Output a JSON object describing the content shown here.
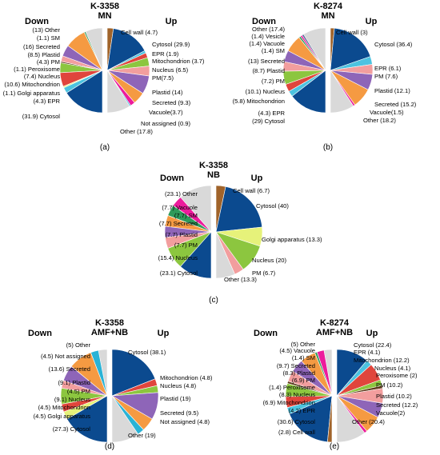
{
  "figure_labels": [
    "(a)",
    "(b)",
    "(c)",
    "(d)",
    "(e)"
  ],
  "colors": {
    "Cell wall": "#a0632a",
    "Cytosol": "#0b4a8f",
    "EPR": "#4cc3e0",
    "Mitochondrion": "#e0453c",
    "Nucleus": "#8cc63f",
    "PM": "#f29e9e",
    "Plastid": "#8e65b8",
    "Secreted": "#f59a42",
    "Vacuole": "#ec1c9c",
    "Not assigned": "#2ab3d6",
    "Other": "#d9d9d9",
    "SM": "#2f9a5a",
    "Peroxisome": "#5d3a1a",
    "Golgi apparatus": "#e6f27a",
    "Vesicle": "#5a6e9a"
  },
  "chart_data": [
    {
      "type": "pie",
      "panel": "(a)",
      "title": "K-3358",
      "subtitle": "MN",
      "down": {
        "label": "Down",
        "slices": [
          {
            "name": "Other",
            "value": 13,
            "text": "(13) Other"
          },
          {
            "name": "SM",
            "value": 1.1,
            "text": "(1.1) SM"
          },
          {
            "name": "Secreted",
            "value": 16,
            "text": "(16) Secreted"
          },
          {
            "name": "Plastid",
            "value": 8.5,
            "text": "(8.5) Plastid"
          },
          {
            "name": "PM",
            "value": 4.3,
            "text": "(4.3) PM"
          },
          {
            "name": "Peroxisome",
            "value": 1.1,
            "text": "(1.1) Peroxisome"
          },
          {
            "name": "Nucleus",
            "value": 7.4,
            "text": "(7.4) Nucleus"
          },
          {
            "name": "Mitochondrion",
            "value": 10.6,
            "text": "(10.6) Mitochondrion"
          },
          {
            "name": "Golgi apparatus",
            "value": 1.1,
            "text": "(1.1) Golgi apparatus"
          },
          {
            "name": "EPR",
            "value": 4.3,
            "text": "(4.3) EPR"
          },
          {
            "name": "Cytosol",
            "value": 31.9,
            "text": "(31.9) Cytosol"
          }
        ]
      },
      "up": {
        "label": "Up",
        "slices": [
          {
            "name": "Cell wall",
            "value": 4.7,
            "text": "Cell wall (4.7)"
          },
          {
            "name": "Cytosol",
            "value": 29.9,
            "text": "Cytosol (29.9)"
          },
          {
            "name": "EPR",
            "value": 1.9,
            "text": "EPR (1.9)"
          },
          {
            "name": "Mitochondrion",
            "value": 3.7,
            "text": "Mitochondrion (3.7)"
          },
          {
            "name": "Nucleus",
            "value": 6.5,
            "text": "Nucleus (6.5)"
          },
          {
            "name": "PM",
            "value": 7.5,
            "text": "PM(7.5)"
          },
          {
            "name": "Plastid",
            "value": 14,
            "text": "Plastid (14)"
          },
          {
            "name": "Secreted",
            "value": 9.3,
            "text": "Secreted (9.3)"
          },
          {
            "name": "Vacuole",
            "value": 3.7,
            "text": "Vacuole(3.7)"
          },
          {
            "name": "Not assigned",
            "value": 0.9,
            "text": "Not assigned (0.9)"
          },
          {
            "name": "Other",
            "value": 17.8,
            "text": "Other (17.8)"
          }
        ]
      }
    },
    {
      "type": "pie",
      "panel": "(b)",
      "title": "K-8274",
      "subtitle": "MN",
      "down": {
        "label": "Down",
        "slices": [
          {
            "name": "Other",
            "value": 17.4,
            "text": "Other (17.4)"
          },
          {
            "name": "Vesicle",
            "value": 1.4,
            "text": "(1.4) Vesicle"
          },
          {
            "name": "Vacuole",
            "value": 1.4,
            "text": "(1.4) Vacuole"
          },
          {
            "name": "SM",
            "value": 1.4,
            "text": "(1.4) SM"
          },
          {
            "name": "Secreted",
            "value": 13,
            "text": "(13) Secreted"
          },
          {
            "name": "Plastid",
            "value": 8.7,
            "text": "(8.7) Plastid"
          },
          {
            "name": "PM",
            "value": 7.2,
            "text": "(7.2) PM"
          },
          {
            "name": "Nucleus",
            "value": 10.1,
            "text": "(10.1) Nucleus"
          },
          {
            "name": "Mitochondrion",
            "value": 5.8,
            "text": "(5.8) Mitochondrion"
          },
          {
            "name": "EPR",
            "value": 4.3,
            "text": "(4.3) EPR"
          },
          {
            "name": "Cytosol",
            "value": 29,
            "text": "(29) Cytosol"
          }
        ]
      },
      "up": {
        "label": "Up",
        "slices": [
          {
            "name": "Cell wall",
            "value": 3,
            "text": "Cell wall (3)"
          },
          {
            "name": "Cytosol",
            "value": 36.4,
            "text": "Cytosol (36.4)"
          },
          {
            "name": "EPR",
            "value": 6.1,
            "text": "EPR (6.1)"
          },
          {
            "name": "PM",
            "value": 7.6,
            "text": "PM (7.6)"
          },
          {
            "name": "Plastid",
            "value": 12.1,
            "text": "Plastid (12.1)"
          },
          {
            "name": "Secreted",
            "value": 15.2,
            "text": "Secreted (15.2)"
          },
          {
            "name": "Vacuole",
            "value": 1.5,
            "text": "Vacuole(1.5)"
          },
          {
            "name": "Other",
            "value": 18.2,
            "text": "Other (18.2)"
          }
        ]
      }
    },
    {
      "type": "pie",
      "panel": "(c)",
      "title": "K-3358",
      "subtitle": "NB",
      "down": {
        "label": "Down",
        "slices": [
          {
            "name": "Other",
            "value": 23.1,
            "text": "(23.1) Other"
          },
          {
            "name": "Vacuole",
            "value": 7.7,
            "text": "(7.7) Vacuole"
          },
          {
            "name": "SM",
            "value": 7.7,
            "text": "(7.7) SM"
          },
          {
            "name": "Secreted",
            "value": 7.7,
            "text": "(7.7) Secreted"
          },
          {
            "name": "Plastid",
            "value": 7.7,
            "text": "(7.7) Plastid"
          },
          {
            "name": "PM",
            "value": 7.7,
            "text": "(7.7) PM"
          },
          {
            "name": "Nucleus",
            "value": 15.4,
            "text": "(15.4) Nucleus"
          },
          {
            "name": "Cytosol",
            "value": 23.1,
            "text": "(23.1) Cytosol"
          }
        ]
      },
      "up": {
        "label": "Up",
        "slices": [
          {
            "name": "Cell wall",
            "value": 6.7,
            "text": "Cell wall (6.7)"
          },
          {
            "name": "Cytosol",
            "value": 40,
            "text": "Cytosol (40)"
          },
          {
            "name": "Golgi apparatus",
            "value": 13.3,
            "text": "Golgi apparatus (13.3)"
          },
          {
            "name": "Nucleus",
            "value": 20,
            "text": "Nucleus (20)"
          },
          {
            "name": "PM",
            "value": 6.7,
            "text": "PM (6.7)"
          },
          {
            "name": "Other",
            "value": 13.3,
            "text": "Other (13.3)"
          }
        ]
      }
    },
    {
      "type": "pie",
      "panel": "(d)",
      "title": "K-3358",
      "subtitle": "AMF+NB",
      "down": {
        "label": "Down",
        "slices": [
          {
            "name": "Other",
            "value": 5,
            "text": "(5) Other"
          },
          {
            "name": "Not assigned",
            "value": 4.5,
            "text": "(4.5) Not assigned"
          },
          {
            "name": "Secreted",
            "value": 13.6,
            "text": "(13.6) Secreted"
          },
          {
            "name": "Plastid",
            "value": 9.1,
            "text": "(9.1) Plastid"
          },
          {
            "name": "PM",
            "value": 4.5,
            "text": "(4.5) PM"
          },
          {
            "name": "Nucleus",
            "value": 9.1,
            "text": "(9.1) Nucleus"
          },
          {
            "name": "Mitochondrion",
            "value": 4.5,
            "text": "(4.5) Mitochondrion"
          },
          {
            "name": "Golgi apparatus",
            "value": 4.5,
            "text": "(4.5) Golgi apparatus"
          },
          {
            "name": "Cytosol",
            "value": 27.3,
            "text": "(27.3) Cytosol"
          }
        ]
      },
      "up": {
        "label": "Up",
        "slices": [
          {
            "name": "Cytosol",
            "value": 38.1,
            "text": "Cytosol (38.1)"
          },
          {
            "name": "Mitochondrion",
            "value": 4.8,
            "text": "Mitochondrion (4.8)"
          },
          {
            "name": "Nucleus",
            "value": 4.8,
            "text": "Nucleus (4.8)"
          },
          {
            "name": "Plastid",
            "value": 19,
            "text": "Plastid (19)"
          },
          {
            "name": "Secreted",
            "value": 9.5,
            "text": "Secreted (9.5)"
          },
          {
            "name": "Not assigned",
            "value": 4.8,
            "text": "Not assigned (4.8)"
          },
          {
            "name": "Other",
            "value": 19,
            "text": "Other (19)"
          }
        ]
      }
    },
    {
      "type": "pie",
      "panel": "(e)",
      "title": "K-8274",
      "subtitle": "AMF+NB",
      "down": {
        "label": "Down",
        "slices": [
          {
            "name": "Other",
            "value": 5,
            "text": "(5) Other"
          },
          {
            "name": "Vacuole",
            "value": 4.5,
            "text": "(4.5) Vacuole"
          },
          {
            "name": "SM",
            "value": 1.4,
            "text": "(1.4) SM"
          },
          {
            "name": "Secreted",
            "value": 9.7,
            "text": "(9.7) Secreted"
          },
          {
            "name": "Plastid",
            "value": 8.3,
            "text": "(8.3) Plastid"
          },
          {
            "name": "PM",
            "value": 6.9,
            "text": "(6.9) PM"
          },
          {
            "name": "Peroxisome",
            "value": 1.4,
            "text": "(1.4) Peroxisome"
          },
          {
            "name": "Nucleus",
            "value": 8.3,
            "text": "(8.3) Nucleus"
          },
          {
            "name": "Mitochondrion",
            "value": 6.9,
            "text": "(6.9) Mitochondrion"
          },
          {
            "name": "EPR",
            "value": 4.2,
            "text": "(4.2) EPR"
          },
          {
            "name": "Cytosol",
            "value": 30.6,
            "text": "(30.6) Cytosol"
          },
          {
            "name": "Cell wall",
            "value": 2.8,
            "text": "(2.8) Cell wall"
          }
        ]
      },
      "up": {
        "label": "Up",
        "slices": [
          {
            "name": "Cytosol",
            "value": 22.4,
            "text": "Cytosol (22.4)"
          },
          {
            "name": "EPR",
            "value": 4.1,
            "text": "EPR (4.1)"
          },
          {
            "name": "Mitochondrion",
            "value": 12.2,
            "text": "Mitochondrion (12.2)"
          },
          {
            "name": "Nucleus",
            "value": 4.1,
            "text": "Nucleus (4.1)"
          },
          {
            "name": "Peroxisome",
            "value": 2,
            "text": "Peroxisome (2)"
          },
          {
            "name": "PM",
            "value": 10.2,
            "text": "PM (10.2)"
          },
          {
            "name": "Plastid",
            "value": 10.2,
            "text": "Plastid (10.2)"
          },
          {
            "name": "Secreted",
            "value": 12.2,
            "text": "Secreted (12.2)"
          },
          {
            "name": "Vacuole",
            "value": 2,
            "text": "Vacuole(2)"
          },
          {
            "name": "Other",
            "value": 20.4,
            "text": "Other (20.4)"
          }
        ]
      }
    }
  ]
}
